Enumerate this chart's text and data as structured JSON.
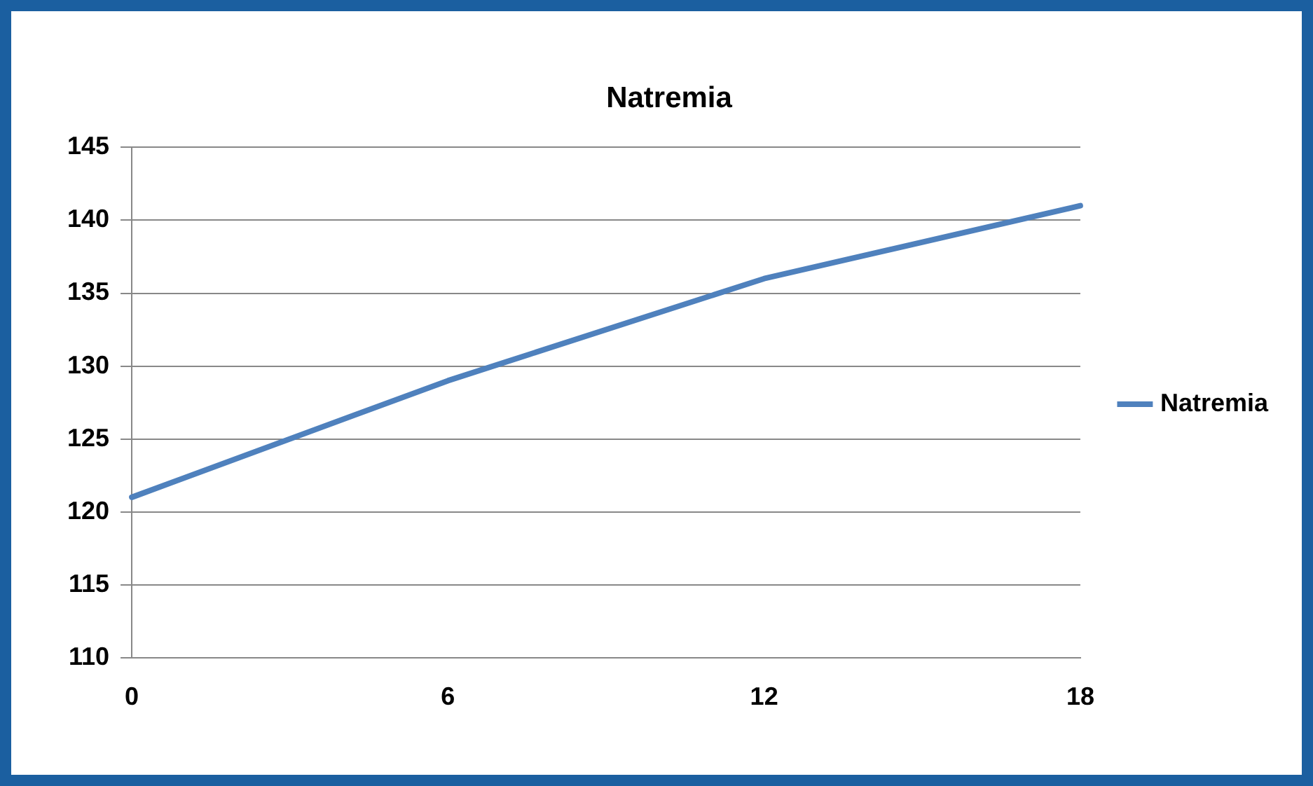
{
  "chart_data": {
    "type": "line",
    "title": "Natremia",
    "categories": [
      "0",
      "6",
      "12",
      "18"
    ],
    "series": [
      {
        "name": "Natremia",
        "color": "#4f81bd",
        "values": [
          121,
          129,
          136,
          141
        ]
      }
    ],
    "ylim": [
      110,
      145
    ],
    "yticks": [
      110,
      115,
      120,
      125,
      130,
      135,
      140,
      145
    ],
    "grid": "y",
    "legend": "right",
    "marker": "none",
    "line_style": "solid"
  }
}
